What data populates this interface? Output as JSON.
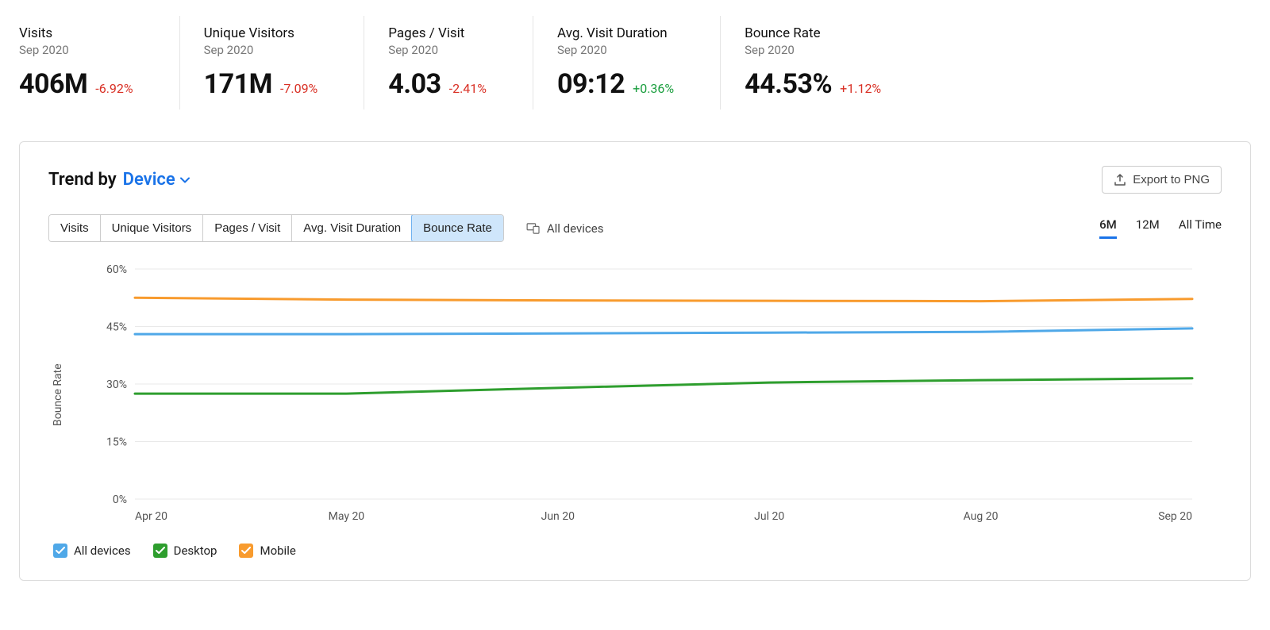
{
  "metrics": [
    {
      "title": "Visits",
      "period": "Sep 2020",
      "value": "406M",
      "delta": "-6.92%",
      "delta_dir": "neg"
    },
    {
      "title": "Unique Visitors",
      "period": "Sep 2020",
      "value": "171M",
      "delta": "-7.09%",
      "delta_dir": "neg"
    },
    {
      "title": "Pages / Visit",
      "period": "Sep 2020",
      "value": "4.03",
      "delta": "-2.41%",
      "delta_dir": "neg"
    },
    {
      "title": "Avg. Visit Duration",
      "period": "Sep 2020",
      "value": "09:12",
      "delta": "+0.36%",
      "delta_dir": "pos"
    },
    {
      "title": "Bounce Rate",
      "period": "Sep 2020",
      "value": "44.53%",
      "delta": "+1.12%",
      "delta_dir": "neg"
    }
  ],
  "panel": {
    "trend_by_label": "Trend by",
    "trend_dropdown": "Device",
    "export_label": "Export to PNG",
    "metric_tabs": [
      "Visits",
      "Unique Visitors",
      "Pages / Visit",
      "Avg. Visit Duration",
      "Bounce Rate"
    ],
    "metric_tab_active": 4,
    "devices_filter_label": "All devices",
    "range_tabs": [
      "6M",
      "12M",
      "All Time"
    ],
    "range_tab_active": 0,
    "y_axis_label": "Bounce Rate"
  },
  "chart": {
    "type": "line",
    "background_color": "#ffffff",
    "grid_color": "#e9e9e9",
    "axis_text_color": "#555555",
    "axis_fontsize": 14,
    "ylim": [
      0,
      60
    ],
    "ytick_step": 15,
    "yticks": [
      "0%",
      "15%",
      "30%",
      "45%",
      "60%"
    ],
    "x_labels": [
      "Apr 20",
      "May 20",
      "Jun 20",
      "Jul 20",
      "Aug 20",
      "Sep 20"
    ],
    "line_width": 3,
    "series": [
      {
        "name": "All devices",
        "color": "#4fa8e8",
        "values": [
          43.0,
          43.0,
          43.2,
          43.4,
          43.6,
          44.5
        ]
      },
      {
        "name": "Desktop",
        "color": "#2e9e2e",
        "values": [
          27.5,
          27.5,
          29.0,
          30.4,
          31.0,
          31.5
        ]
      },
      {
        "name": "Mobile",
        "color": "#f89b2e",
        "values": [
          52.5,
          52.0,
          51.8,
          51.7,
          51.6,
          52.2
        ]
      }
    ],
    "legend": [
      {
        "label": "All devices",
        "color": "#4fa8e8"
      },
      {
        "label": "Desktop",
        "color": "#2e9e2e"
      },
      {
        "label": "Mobile",
        "color": "#f89b2e"
      }
    ]
  }
}
